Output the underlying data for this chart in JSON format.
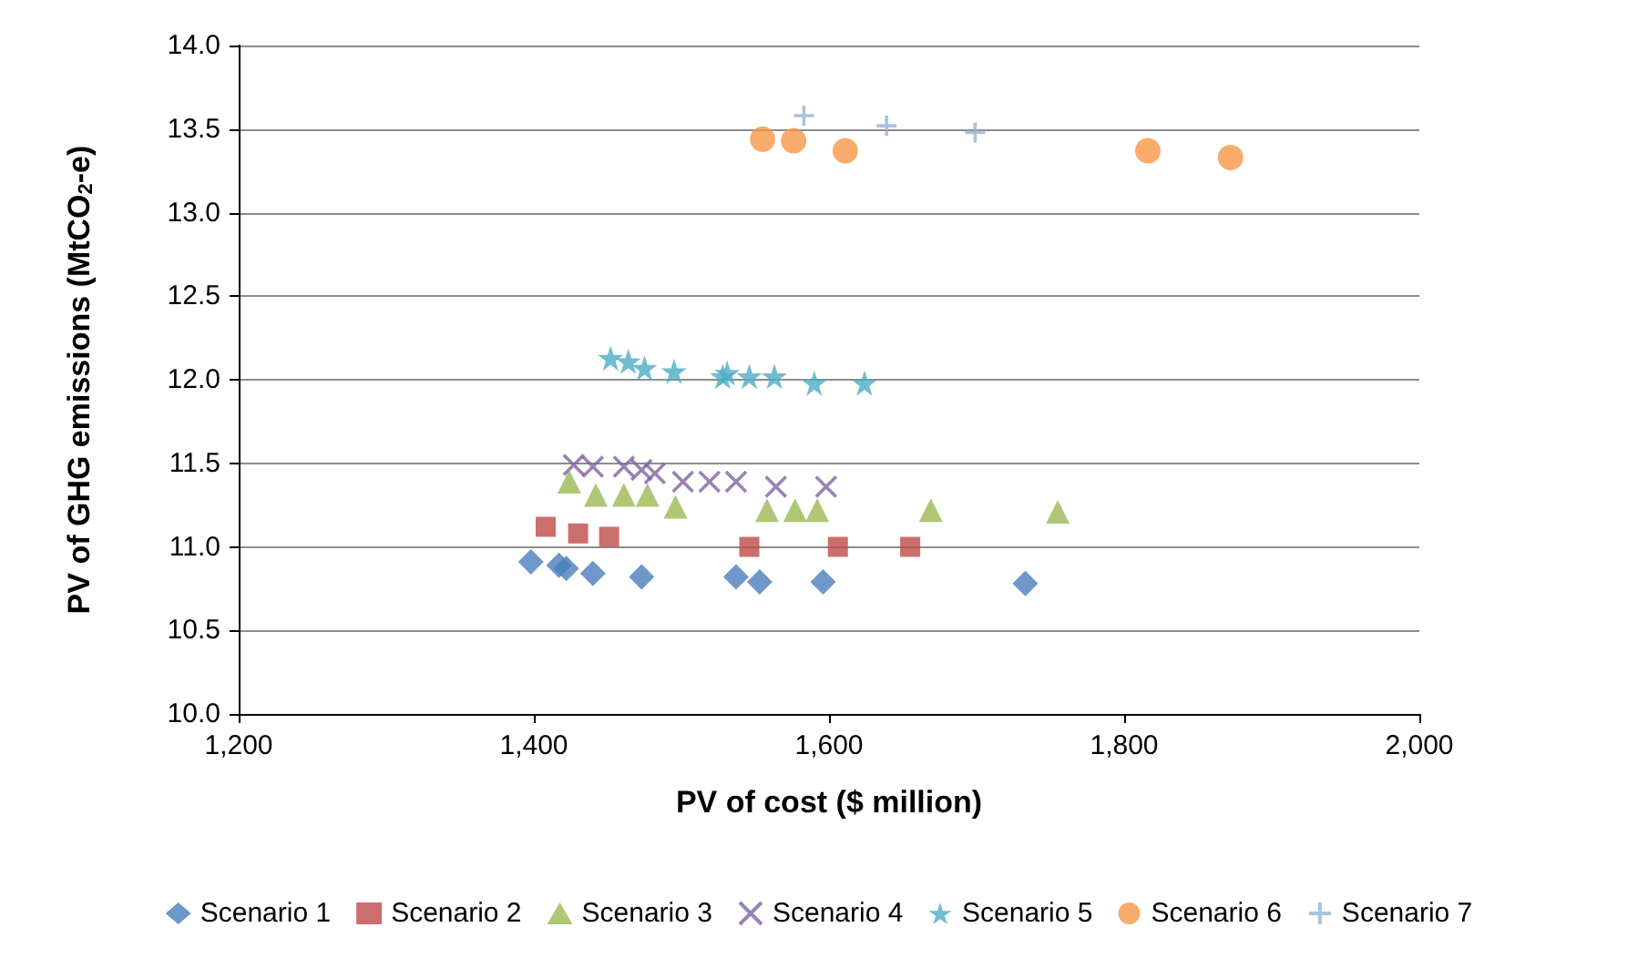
{
  "chart_data": {
    "type": "scatter",
    "xlabel": "PV of cost ($ million)",
    "ylabel": "PV of GHG emissions (MtCO$_{2}$-e)",
    "xlim": [
      1200,
      2000
    ],
    "xticks": [
      {
        "value": 1200,
        "label": "1,200"
      },
      {
        "value": 1400,
        "label": "1,400"
      },
      {
        "value": 1600,
        "label": "1,600"
      },
      {
        "value": 1800,
        "label": "1,800"
      },
      {
        "value": 2000,
        "label": "2,000"
      }
    ],
    "ylim": [
      10,
      14
    ],
    "yticks": [
      {
        "value": 10,
        "label": "10.0"
      },
      {
        "value": 10.5,
        "label": "10.5"
      },
      {
        "value": 11,
        "label": "11.0"
      },
      {
        "value": 11.5,
        "label": "11.5"
      },
      {
        "value": 12,
        "label": "12.0"
      },
      {
        "value": 12.5,
        "label": "12.5"
      },
      {
        "value": 13,
        "label": "13.0"
      },
      {
        "value": 13.5,
        "label": "13.5"
      },
      {
        "value": 14,
        "label": "14.0"
      }
    ],
    "grid": "y",
    "legend": "bottom",
    "series": [
      {
        "name": "Scenario 1",
        "color": "#4a7ebb",
        "marker": "diamond",
        "x": [
          1398,
          1417,
          1422,
          1440,
          1473,
          1537,
          1553,
          1596,
          1733
        ],
        "values": [
          10.91,
          10.89,
          10.87,
          10.84,
          10.82,
          10.82,
          10.79,
          10.79,
          10.78
        ]
      },
      {
        "name": "Scenario 2",
        "color": "#be4b48",
        "marker": "square",
        "x": [
          1408,
          1430,
          1451,
          1546,
          1606,
          1655
        ],
        "values": [
          11.12,
          11.08,
          11.06,
          11.0,
          11.0,
          11.0
        ]
      },
      {
        "name": "Scenario 3",
        "color": "#98b954",
        "marker": "triangle",
        "x": [
          1424,
          1442,
          1461,
          1477,
          1496,
          1558,
          1577,
          1592,
          1669,
          1755
        ],
        "values": [
          11.39,
          11.31,
          11.31,
          11.31,
          11.24,
          11.22,
          11.22,
          11.22,
          11.22,
          11.21
        ]
      },
      {
        "name": "Scenario 4",
        "color": "#8064a2",
        "marker": "cross",
        "x": [
          1427,
          1440,
          1461,
          1473,
          1482,
          1501,
          1519,
          1537,
          1564,
          1598
        ],
        "values": [
          11.49,
          11.48,
          11.48,
          11.46,
          11.44,
          11.39,
          11.39,
          11.39,
          11.36,
          11.36
        ]
      },
      {
        "name": "Scenario 5",
        "color": "#4bacc6",
        "marker": "star",
        "x": [
          1452,
          1464,
          1475,
          1495,
          1528,
          1531,
          1546,
          1563,
          1590,
          1624
        ],
        "values": [
          12.13,
          12.11,
          12.07,
          12.05,
          12.02,
          12.04,
          12.02,
          12.02,
          11.98,
          11.98
        ]
      },
      {
        "name": "Scenario 6",
        "color": "#f79646",
        "marker": "circle",
        "x": [
          1555,
          1576,
          1611,
          1816,
          1872
        ],
        "values": [
          13.44,
          13.43,
          13.37,
          13.37,
          13.33
        ]
      },
      {
        "name": "Scenario 7",
        "color": "#95b3d7",
        "marker": "plus",
        "x": [
          1583,
          1639,
          1699
        ],
        "values": [
          13.58,
          13.52,
          13.48
        ]
      }
    ]
  }
}
